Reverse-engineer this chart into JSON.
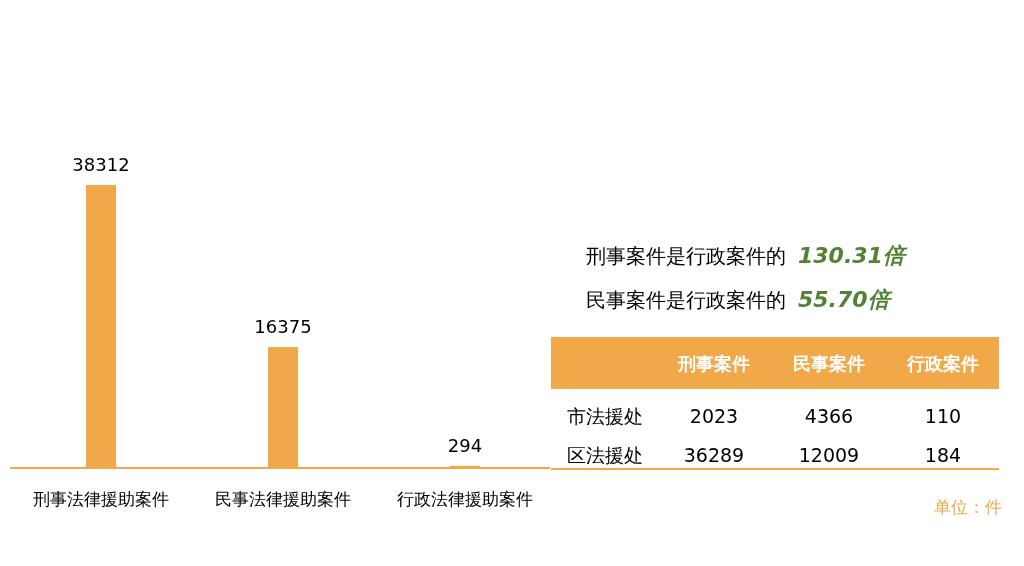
{
  "chart_data": [
    {
      "type": "bar",
      "categories": [
        "刑事法律援助案件",
        "民事法律援助案件",
        "行政法律援助案件"
      ],
      "values": [
        38312,
        16375,
        294
      ],
      "color": "#f0a848",
      "data_labels": true,
      "annotations": [
        "刑事案件是行政案件的",
        "130.31倍",
        "民事案件是行政案件的",
        "55.70倍",
        "单位：件"
      ]
    },
    {
      "type": "other",
      "categories": [
        "刑事案件",
        "民事案件",
        "行政案件"
      ],
      "y_categories": [
        "市法援处",
        "区法援处"
      ],
      "cell_labels": [
        [
          "2023",
          "4366",
          "110"
        ],
        [
          "36289",
          "12009",
          "184"
        ]
      ],
      "color": "#f0a848"
    }
  ]
}
